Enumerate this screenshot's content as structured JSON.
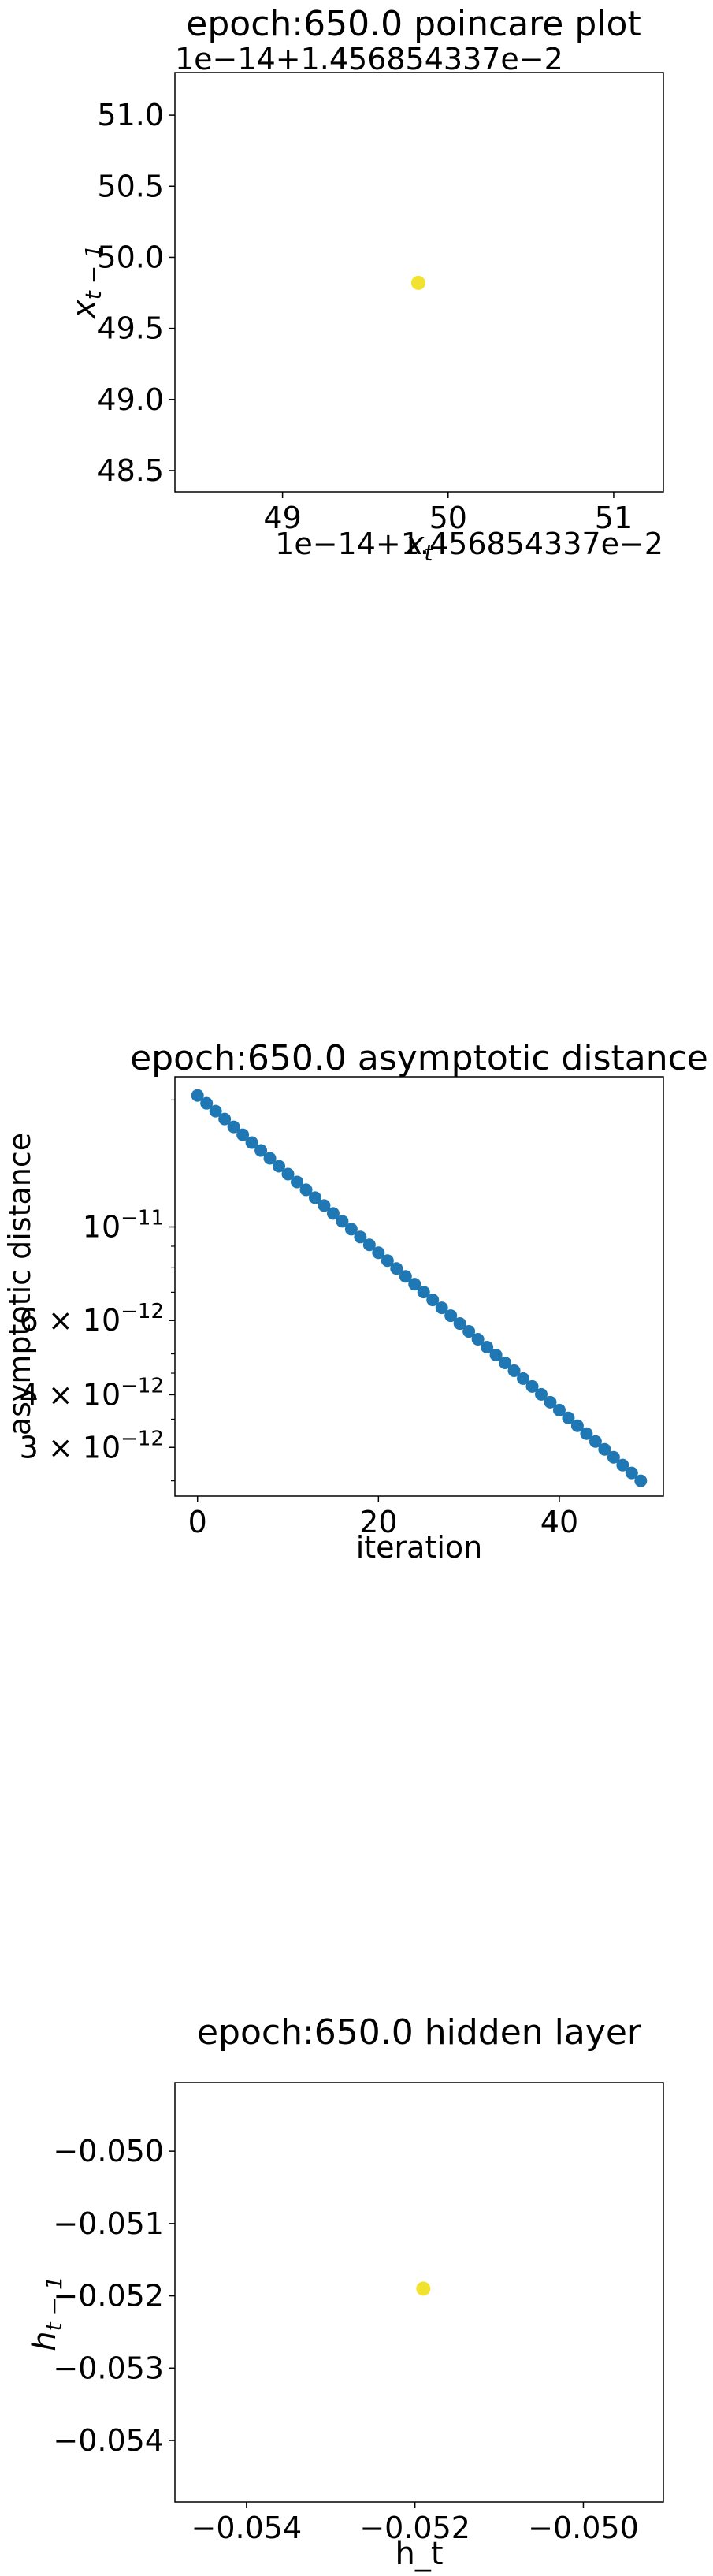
{
  "chart_data": [
    {
      "type": "scatter",
      "title": "epoch:650.0 poincare plot",
      "xlabel": "x_t",
      "ylabel": "x_{t-1}",
      "x_offset_text": "1e−14+1.456854337e−2",
      "y_offset_text": "1e−14+1.456854337e−2",
      "xlim": [
        48.35,
        51.3
      ],
      "ylim": [
        48.35,
        51.3
      ],
      "xticks": [
        49,
        50,
        51
      ],
      "yticks": [
        48.5,
        49.0,
        49.5,
        50.0,
        50.5,
        51.0
      ],
      "xtick_labels": [
        "49",
        "50",
        "51"
      ],
      "ytick_labels": [
        "48.5",
        "49.0",
        "49.5",
        "50.0",
        "50.5",
        "51.0"
      ],
      "points": [
        {
          "x": 49.82,
          "y": 49.82
        }
      ],
      "point_color": "#f1e22f"
    },
    {
      "type": "scatter",
      "title": "epoch:650.0 asymptotic distance",
      "xlabel": "iteration",
      "ylabel": "asymptotic distance",
      "yscale": "log",
      "xlim": [
        -2.5,
        51.5
      ],
      "ylim": [
        2.3e-12,
        2.27e-11
      ],
      "xticks": [
        0,
        20,
        40
      ],
      "xtick_labels": [
        "0",
        "20",
        "40"
      ],
      "yticks": [
        1e-11,
        6e-12,
        4e-12,
        3e-12
      ],
      "ytick_labels": [
        {
          "base": "10",
          "exp": "−11"
        },
        {
          "base": "6 × 10",
          "exp": "−12"
        },
        {
          "base": "4 × 10",
          "exp": "−12"
        },
        {
          "base": "3 × 10",
          "exp": "−12"
        }
      ],
      "series_start": {
        "x": 0,
        "y": 2.05e-11
      },
      "series_end": {
        "x": 49,
        "y": 2.5e-12
      },
      "point_count": 50,
      "point_color": "#1f77b4"
    },
    {
      "type": "scatter",
      "title": "epoch:650.0 hidden layer",
      "xlabel": "h_t",
      "ylabel": "h_{t-1}",
      "xlim": [
        -0.05485,
        -0.04905
      ],
      "ylim": [
        -0.05485,
        -0.04905
      ],
      "xticks": [
        -0.054,
        -0.052,
        -0.05
      ],
      "xtick_labels": [
        "−0.054",
        "−0.052",
        "−0.050"
      ],
      "yticks": [
        -0.05,
        -0.051,
        -0.052,
        -0.053,
        -0.054
      ],
      "ytick_labels": [
        "−0.050",
        "−0.051",
        "−0.052",
        "−0.053",
        "−0.054"
      ],
      "points": [
        {
          "x": -0.0519,
          "y": -0.0519
        }
      ],
      "point_color": "#f1e22f"
    }
  ]
}
